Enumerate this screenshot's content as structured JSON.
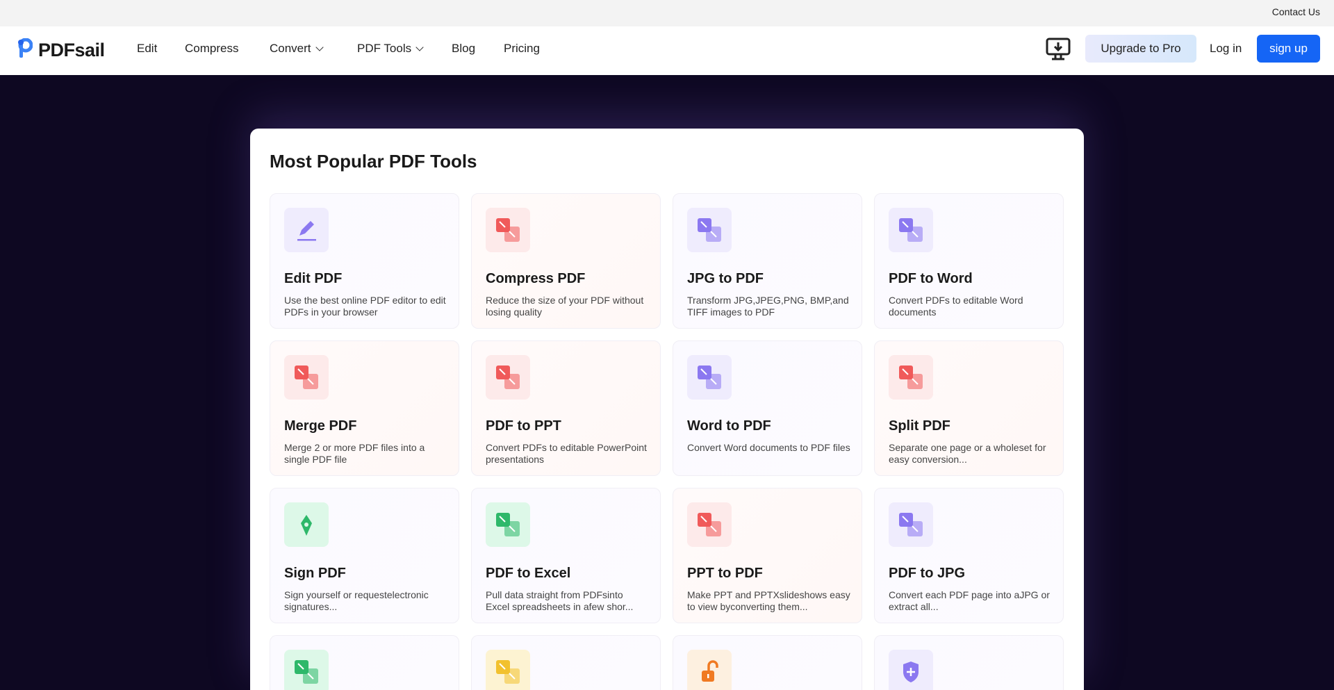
{
  "topbar": {
    "contact": "Contact Us"
  },
  "nav": {
    "logo": "PDFsail",
    "items": [
      {
        "label": "Edit"
      },
      {
        "label": "Compress"
      },
      {
        "label": "Convert",
        "dropdown": true
      },
      {
        "label": "PDF Tools",
        "dropdown": true
      },
      {
        "label": "Blog"
      },
      {
        "label": "Pricing"
      }
    ],
    "download_icon": "desktop-download-icon",
    "upgrade": "Upgrade to Pro",
    "login": "Log in",
    "signup": "sign up"
  },
  "colors": {
    "accent": "#1565f5",
    "background": "#0e0822",
    "purple": "#8b78f0",
    "red": "#f05a5a",
    "green": "#2eb86a",
    "yellow": "#f2c12e",
    "orange": "#f07a22"
  },
  "main": {
    "title": "Most Popular PDF Tools",
    "tools": [
      {
        "title": "Edit PDF",
        "desc": "Use the best online PDF editor to edit PDFs in your browser",
        "icon": "pencil-icon",
        "color": "purple"
      },
      {
        "title": "Compress PDF",
        "desc": "Reduce the size of your PDF without losing quality",
        "icon": "compress-pdf-icon",
        "color": "red"
      },
      {
        "title": "JPG to PDF",
        "desc": "Transform JPG,JPEG,PNG, BMP,and TIFF images to PDF",
        "icon": "image-to-pdf-icon",
        "color": "purple"
      },
      {
        "title": "PDF to Word",
        "desc": "Convert PDFs to editable Word documents",
        "icon": "pdf-to-word-icon",
        "color": "purple"
      },
      {
        "title": "Merge PDF",
        "desc": "Merge 2 or more PDF files into a single PDF file",
        "icon": "merge-icon",
        "color": "red"
      },
      {
        "title": "PDF to PPT",
        "desc": "Convert PDFs to editable PowerPoint presentations",
        "icon": "pdf-to-ppt-icon",
        "color": "red"
      },
      {
        "title": "Word to PDF",
        "desc": "Convert Word documents to PDF files",
        "icon": "word-to-pdf-icon",
        "color": "purple"
      },
      {
        "title": "Split PDF",
        "desc": "Separate one page or a wholeset for easy conversion...",
        "icon": "split-icon",
        "color": "red"
      },
      {
        "title": "Sign PDF",
        "desc": "Sign yourself or requestelectronic signatures...",
        "icon": "pen-nib-icon",
        "color": "green"
      },
      {
        "title": "PDF to Excel",
        "desc": "Pull data straight from PDFsinto Excel spreadsheets in afew shor...",
        "icon": "pdf-to-excel-icon",
        "color": "green"
      },
      {
        "title": "PPT to PDF",
        "desc": "Make PPT and PPTXslideshows easy to view byconverting them...",
        "icon": "ppt-to-pdf-icon",
        "color": "red"
      },
      {
        "title": "PDF to JPG",
        "desc": "Convert each PDF page into aJPG or extract all...",
        "icon": "pdf-to-image-icon",
        "color": "purple"
      },
      {
        "icon": "excel-to-pdf-icon",
        "color": "green"
      },
      {
        "icon": "html-to-pdf-icon",
        "color": "yellow"
      },
      {
        "icon": "unlock-icon",
        "color": "orange"
      },
      {
        "icon": "protect-shield-icon",
        "color": "purple"
      }
    ]
  }
}
